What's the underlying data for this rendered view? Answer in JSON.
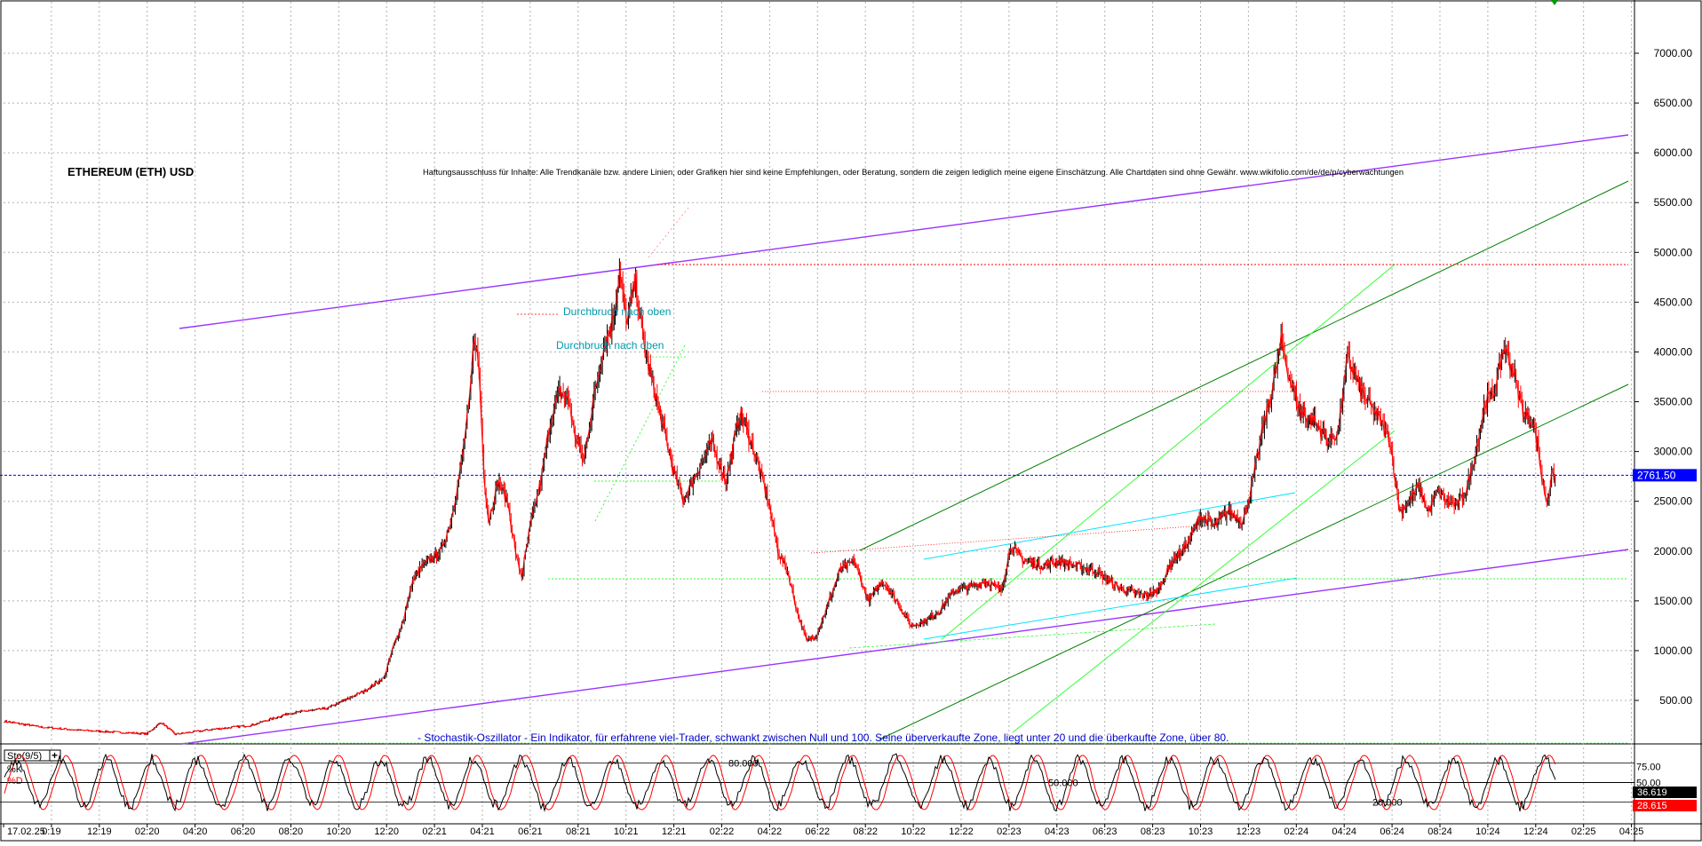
{
  "chart_data": {
    "type": "candlestick",
    "title": "ETHEREUM (ETH) USD",
    "disclaimer": "Haftungsausschluss für Inhalte: Alle Trendkanäle bzw. andere Linien, oder Grafiken hier sind keine Empfehlungen, oder Beratung, sondern die zeigen lediglich meine eigene Einschätzung. Alle Chartdaten sind ohne Gewähr.  www.wikifolio.com/de/de/p/cyberwachtungen",
    "last_price": "2761.50",
    "y_axis": {
      "ticks": [
        "7000.00",
        "6500.00",
        "6000.00",
        "5500.00",
        "5000.00",
        "4500.00",
        "4000.00",
        "3500.00",
        "3000.00",
        "2500.00",
        "2000.00",
        "1500.00",
        "1000.00",
        "500.00"
      ],
      "ylim": [
        0,
        7500
      ]
    },
    "x_axis": {
      "tick_labels": [
        "17.02.25",
        "0:19",
        "12:19",
        "02:20",
        "04:20",
        "06:20",
        "08:20",
        "10:20",
        "12:20",
        "02:21",
        "04:21",
        "06:21",
        "08:21",
        "10:21",
        "12:21",
        "02:22",
        "04:22",
        "06:22",
        "08:22",
        "10:22",
        "12:22",
        "02:23",
        "04:23",
        "06:23",
        "08:23",
        "10:23",
        "12:23",
        "02:24",
        "04:24",
        "06:24",
        "08:24",
        "10:24",
        "12:24",
        "02:25",
        "04:25"
      ]
    },
    "price_path": [
      [
        0,
        290
      ],
      [
        40,
        230
      ],
      [
        80,
        200
      ],
      [
        120,
        180
      ],
      [
        150,
        165
      ],
      [
        165,
        280
      ],
      [
        180,
        160
      ],
      [
        220,
        210
      ],
      [
        260,
        250
      ],
      [
        300,
        370
      ],
      [
        340,
        420
      ],
      [
        380,
        600
      ],
      [
        400,
        730
      ],
      [
        410,
        1050
      ],
      [
        420,
        1300
      ],
      [
        430,
        1700
      ],
      [
        440,
        1850
      ],
      [
        460,
        2000
      ],
      [
        470,
        2300
      ],
      [
        480,
        2800
      ],
      [
        490,
        3500
      ],
      [
        495,
        4200
      ],
      [
        500,
        3800
      ],
      [
        505,
        2800
      ],
      [
        510,
        2300
      ],
      [
        520,
        2700
      ],
      [
        530,
        2500
      ],
      [
        540,
        1900
      ],
      [
        545,
        1750
      ],
      [
        555,
        2300
      ],
      [
        565,
        2700
      ],
      [
        575,
        3300
      ],
      [
        585,
        3600
      ],
      [
        595,
        3500
      ],
      [
        600,
        3200
      ],
      [
        610,
        2900
      ],
      [
        620,
        3500
      ],
      [
        630,
        4000
      ],
      [
        640,
        4300
      ],
      [
        648,
        4800
      ],
      [
        655,
        4300
      ],
      [
        665,
        4700
      ],
      [
        675,
        4000
      ],
      [
        690,
        3400
      ],
      [
        705,
        2800
      ],
      [
        715,
        2500
      ],
      [
        735,
        2900
      ],
      [
        745,
        3100
      ],
      [
        760,
        2700
      ],
      [
        775,
        3400
      ],
      [
        790,
        3000
      ],
      [
        805,
        2500
      ],
      [
        815,
        2000
      ],
      [
        825,
        1800
      ],
      [
        835,
        1400
      ],
      [
        845,
        1100
      ],
      [
        855,
        1150
      ],
      [
        865,
        1400
      ],
      [
        880,
        1800
      ],
      [
        895,
        1900
      ],
      [
        910,
        1500
      ],
      [
        925,
        1700
      ],
      [
        940,
        1500
      ],
      [
        955,
        1250
      ],
      [
        970,
        1300
      ],
      [
        985,
        1400
      ],
      [
        1000,
        1600
      ],
      [
        1020,
        1650
      ],
      [
        1035,
        1700
      ],
      [
        1050,
        1600
      ],
      [
        1060,
        2050
      ],
      [
        1075,
        1900
      ],
      [
        1095,
        1850
      ],
      [
        1110,
        1900
      ],
      [
        1130,
        1850
      ],
      [
        1150,
        1800
      ],
      [
        1170,
        1650
      ],
      [
        1185,
        1600
      ],
      [
        1200,
        1550
      ],
      [
        1215,
        1600
      ],
      [
        1230,
        1900
      ],
      [
        1245,
        2050
      ],
      [
        1260,
        2350
      ],
      [
        1275,
        2250
      ],
      [
        1290,
        2400
      ],
      [
        1305,
        2300
      ],
      [
        1315,
        2700
      ],
      [
        1325,
        3200
      ],
      [
        1335,
        3600
      ],
      [
        1345,
        4100
      ],
      [
        1355,
        3700
      ],
      [
        1365,
        3400
      ],
      [
        1380,
        3300
      ],
      [
        1395,
        3100
      ],
      [
        1405,
        3200
      ],
      [
        1415,
        3950
      ],
      [
        1430,
        3600
      ],
      [
        1440,
        3450
      ],
      [
        1450,
        3300
      ],
      [
        1460,
        3100
      ],
      [
        1470,
        2400
      ],
      [
        1480,
        2500
      ],
      [
        1490,
        2650
      ],
      [
        1500,
        2400
      ],
      [
        1510,
        2600
      ],
      [
        1520,
        2500
      ],
      [
        1530,
        2450
      ],
      [
        1540,
        2600
      ],
      [
        1550,
        3000
      ],
      [
        1560,
        3500
      ],
      [
        1570,
        3600
      ],
      [
        1580,
        4050
      ],
      [
        1590,
        3800
      ],
      [
        1600,
        3400
      ],
      [
        1610,
        3300
      ],
      [
        1615,
        3100
      ],
      [
        1620,
        2700
      ],
      [
        1625,
        2500
      ],
      [
        1630,
        2750
      ],
      [
        1635,
        2760
      ]
    ],
    "annotations": {
      "labels": [
        "Durchbruch nach oben",
        "Durchbruch nach oben"
      ],
      "stochastic_note": "- Stochastik-Oszillator - Ein Indikator, für erfahrene viel-Trader, schwankt zwischen Null und 100. Seine überverkaufte Zone, liegt unter 20 und die überkaufte Zone, über 80."
    },
    "indicator": {
      "name": "Sto(9/5)",
      "lines": [
        "%K",
        "%D"
      ],
      "levels": [
        "80.000",
        "50.000",
        "20.000"
      ],
      "axis_ticks": [
        "75.00",
        "50.00"
      ],
      "k_value": "36.619",
      "d_value": "28.615"
    },
    "colors": {
      "price_down": "#ff0000",
      "price_up": "#000000",
      "channel": "#9933ff",
      "trend_green": "#008000",
      "trend_lightgreen": "#33ff33",
      "trend_cyan": "#00e5ff",
      "last_price_line": "#0000ff",
      "label_teal": "#0099aa"
    }
  }
}
